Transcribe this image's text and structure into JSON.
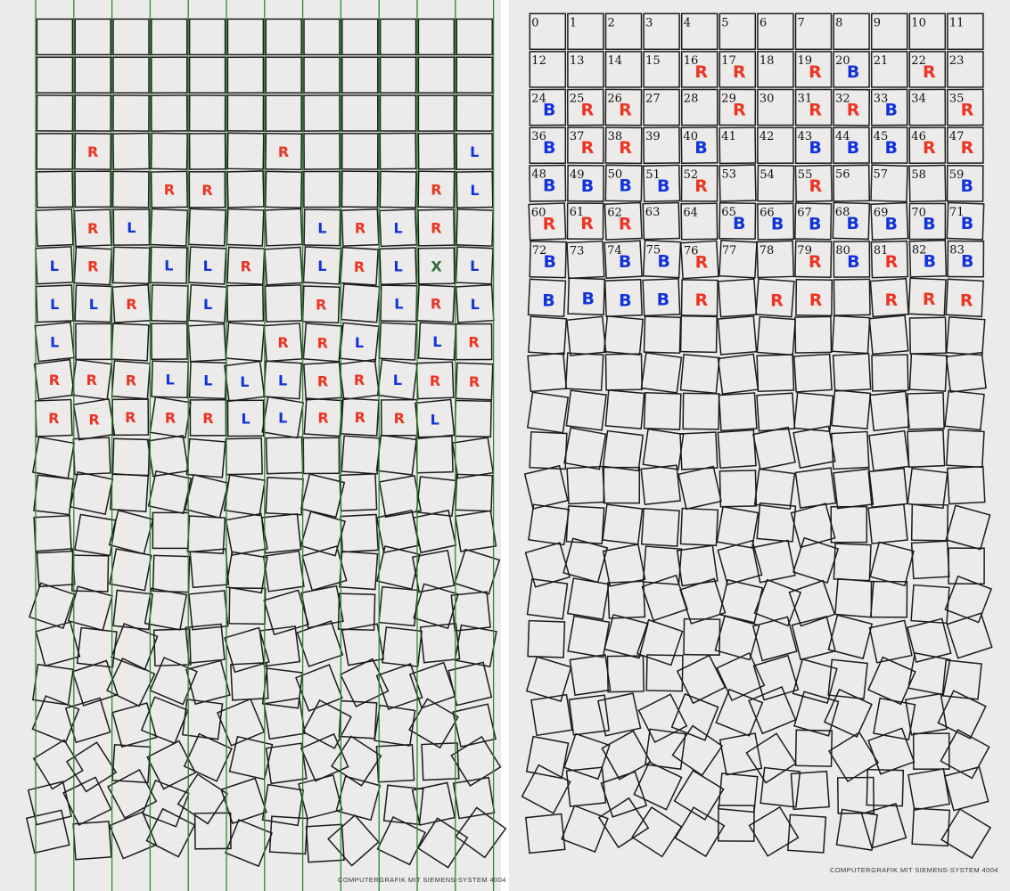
{
  "colors": {
    "paper": "#ecebea",
    "stroke": "#1b1b1b",
    "guide": "#2d8a2d",
    "red": "#ee3322",
    "blue": "#1133dd",
    "x_mark": "#2d6a3a"
  },
  "credit": "COMPUTERGRAFIK MIT SIEMENS-SYSTEM 4004",
  "left_panel": {
    "columns": 12,
    "rows": 22,
    "labels": [
      {
        "i": 37,
        "t": "R"
      },
      {
        "i": 42,
        "t": "R"
      },
      {
        "i": 47,
        "t": "L"
      },
      {
        "i": 51,
        "t": "R"
      },
      {
        "i": 52,
        "t": "R"
      },
      {
        "i": 58,
        "t": "R"
      },
      {
        "i": 59,
        "t": "L"
      },
      {
        "i": 61,
        "t": "R"
      },
      {
        "i": 62,
        "t": "L"
      },
      {
        "i": 67,
        "t": "L"
      },
      {
        "i": 68,
        "t": "R"
      },
      {
        "i": 69,
        "t": "L"
      },
      {
        "i": 70,
        "t": "R"
      },
      {
        "i": 72,
        "t": "L"
      },
      {
        "i": 73,
        "t": "R"
      },
      {
        "i": 75,
        "t": "L"
      },
      {
        "i": 76,
        "t": "L"
      },
      {
        "i": 77,
        "t": "R"
      },
      {
        "i": 79,
        "t": "L"
      },
      {
        "i": 80,
        "t": "R"
      },
      {
        "i": 81,
        "t": "L"
      },
      {
        "i": 82,
        "t": "X"
      },
      {
        "i": 83,
        "t": "L"
      },
      {
        "i": 84,
        "t": "L"
      },
      {
        "i": 85,
        "t": "L"
      },
      {
        "i": 86,
        "t": "R"
      },
      {
        "i": 88,
        "t": "L"
      },
      {
        "i": 91,
        "t": "R"
      },
      {
        "i": 93,
        "t": "L"
      },
      {
        "i": 94,
        "t": "R"
      },
      {
        "i": 95,
        "t": "L"
      },
      {
        "i": 96,
        "t": "L"
      },
      {
        "i": 102,
        "t": "R"
      },
      {
        "i": 103,
        "t": "R"
      },
      {
        "i": 104,
        "t": "L"
      },
      {
        "i": 106,
        "t": "L"
      },
      {
        "i": 107,
        "t": "R"
      },
      {
        "i": 108,
        "t": "R"
      },
      {
        "i": 109,
        "t": "R"
      },
      {
        "i": 110,
        "t": "R"
      },
      {
        "i": 111,
        "t": "L"
      },
      {
        "i": 112,
        "t": "L"
      },
      {
        "i": 113,
        "t": "L"
      },
      {
        "i": 114,
        "t": "L"
      },
      {
        "i": 115,
        "t": "R"
      },
      {
        "i": 116,
        "t": "R"
      },
      {
        "i": 117,
        "t": "L"
      },
      {
        "i": 118,
        "t": "R"
      },
      {
        "i": 119,
        "t": "R"
      },
      {
        "i": 120,
        "t": "R"
      },
      {
        "i": 121,
        "t": "R"
      },
      {
        "i": 122,
        "t": "R"
      },
      {
        "i": 123,
        "t": "R"
      },
      {
        "i": 124,
        "t": "R"
      },
      {
        "i": 125,
        "t": "L"
      },
      {
        "i": 126,
        "t": "L"
      },
      {
        "i": 127,
        "t": "R"
      },
      {
        "i": 128,
        "t": "R"
      },
      {
        "i": 129,
        "t": "R"
      },
      {
        "i": 130,
        "t": "L"
      }
    ]
  },
  "right_panel": {
    "columns": 12,
    "rows": 22,
    "numbers": [
      "0",
      "1",
      "2",
      "3",
      "4",
      "5",
      "6",
      "7",
      "8",
      "9",
      "10",
      "11",
      "12",
      "13",
      "14",
      "15",
      "16",
      "17",
      "18",
      "19",
      "20",
      "21",
      "22",
      "23",
      "24",
      "25",
      "26",
      "27",
      "28",
      "29",
      "30",
      "31",
      "32",
      "33",
      "34",
      "35",
      "36",
      "37",
      "38",
      "39",
      "40",
      "41",
      "42",
      "43",
      "44",
      "45",
      "46",
      "47",
      "48",
      "49",
      "50",
      "51",
      "52",
      "53",
      "54",
      "55",
      "56",
      "57",
      "58",
      "59",
      "60",
      "61",
      "62",
      "63",
      "64",
      "65",
      "66",
      "67",
      "68",
      "69",
      "70",
      "71",
      "72",
      "73",
      "74",
      "75",
      "76",
      "77",
      "78",
      "79",
      "80",
      "81",
      "82",
      "83"
    ],
    "labels": [
      {
        "i": 16,
        "t": "R"
      },
      {
        "i": 17,
        "t": "R"
      },
      {
        "i": 19,
        "t": "R"
      },
      {
        "i": 20,
        "t": "B"
      },
      {
        "i": 22,
        "t": "R"
      },
      {
        "i": 24,
        "t": "B"
      },
      {
        "i": 25,
        "t": "R"
      },
      {
        "i": 26,
        "t": "R"
      },
      {
        "i": 29,
        "t": "R"
      },
      {
        "i": 31,
        "t": "R"
      },
      {
        "i": 32,
        "t": "R"
      },
      {
        "i": 33,
        "t": "B"
      },
      {
        "i": 35,
        "t": "R"
      },
      {
        "i": 36,
        "t": "B"
      },
      {
        "i": 37,
        "t": "R"
      },
      {
        "i": 38,
        "t": "R"
      },
      {
        "i": 40,
        "t": "B"
      },
      {
        "i": 43,
        "t": "B"
      },
      {
        "i": 44,
        "t": "B"
      },
      {
        "i": 45,
        "t": "B"
      },
      {
        "i": 46,
        "t": "R"
      },
      {
        "i": 47,
        "t": "R"
      },
      {
        "i": 48,
        "t": "B"
      },
      {
        "i": 49,
        "t": "B"
      },
      {
        "i": 50,
        "t": "B"
      },
      {
        "i": 51,
        "t": "B"
      },
      {
        "i": 52,
        "t": "R"
      },
      {
        "i": 55,
        "t": "R"
      },
      {
        "i": 59,
        "t": "B"
      },
      {
        "i": 60,
        "t": "R"
      },
      {
        "i": 61,
        "t": "R"
      },
      {
        "i": 62,
        "t": "R"
      },
      {
        "i": 65,
        "t": "B"
      },
      {
        "i": 66,
        "t": "B"
      },
      {
        "i": 67,
        "t": "B"
      },
      {
        "i": 68,
        "t": "B"
      },
      {
        "i": 69,
        "t": "B"
      },
      {
        "i": 70,
        "t": "B"
      },
      {
        "i": 71,
        "t": "B"
      },
      {
        "i": 72,
        "t": "B"
      },
      {
        "i": 74,
        "t": "B"
      },
      {
        "i": 75,
        "t": "B"
      },
      {
        "i": 76,
        "t": "R"
      },
      {
        "i": 79,
        "t": "R"
      },
      {
        "i": 80,
        "t": "B"
      },
      {
        "i": 81,
        "t": "R"
      },
      {
        "i": 82,
        "t": "B"
      },
      {
        "i": 83,
        "t": "B"
      },
      {
        "i": 84,
        "t": "B"
      },
      {
        "i": 85,
        "t": "B"
      },
      {
        "i": 86,
        "t": "B"
      },
      {
        "i": 87,
        "t": "B"
      },
      {
        "i": 88,
        "t": "R"
      },
      {
        "i": 90,
        "t": "R"
      },
      {
        "i": 91,
        "t": "R"
      },
      {
        "i": 93,
        "t": "R"
      },
      {
        "i": 94,
        "t": "R"
      },
      {
        "i": 95,
        "t": "R"
      }
    ]
  }
}
